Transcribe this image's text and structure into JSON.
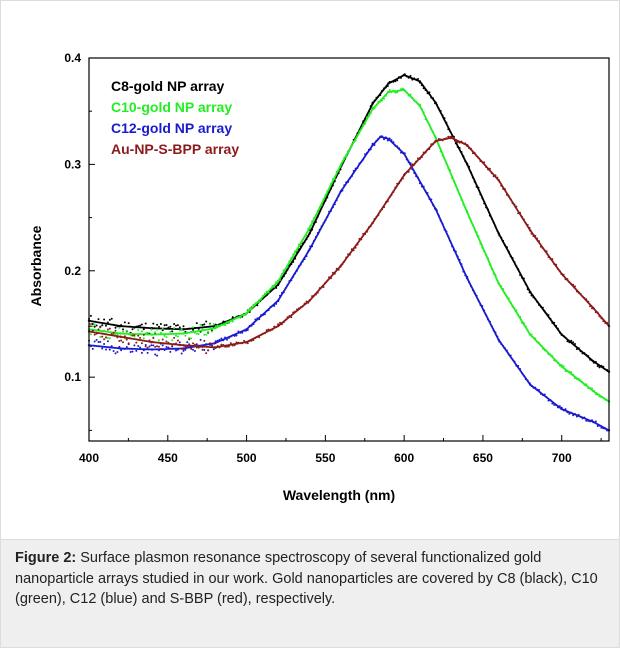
{
  "chart_data": {
    "type": "scatter",
    "title": "",
    "xlabel": "Wavelength (nm)",
    "ylabel": "Absorbance",
    "xlim": [
      400,
      730
    ],
    "ylim": [
      0.04,
      0.4
    ],
    "xticks": [
      400,
      450,
      500,
      550,
      600,
      650,
      700
    ],
    "yticks": [
      0.1,
      0.2,
      0.3,
      0.4
    ],
    "xtick_labels": [
      "400",
      "450",
      "500",
      "550",
      "600",
      "650",
      "700"
    ],
    "ytick_labels": [
      "0.1",
      "0.2",
      "0.3",
      "0.4"
    ],
    "grid": false,
    "legend_position": "top-left",
    "series": [
      {
        "name": "C8-gold NP array",
        "color": "#000000",
        "x": [
          400,
          420,
          440,
          460,
          480,
          500,
          520,
          540,
          560,
          580,
          590,
          600,
          610,
          620,
          640,
          660,
          680,
          700,
          720,
          730
        ],
        "y": [
          0.153,
          0.148,
          0.146,
          0.145,
          0.148,
          0.16,
          0.187,
          0.235,
          0.298,
          0.357,
          0.376,
          0.384,
          0.378,
          0.358,
          0.3,
          0.235,
          0.18,
          0.14,
          0.115,
          0.105
        ]
      },
      {
        "name": "C10-gold NP array",
        "color": "#22ee22",
        "x": [
          400,
          420,
          440,
          460,
          480,
          500,
          520,
          540,
          560,
          580,
          590,
          600,
          610,
          620,
          640,
          660,
          680,
          700,
          720,
          730
        ],
        "y": [
          0.145,
          0.141,
          0.14,
          0.141,
          0.146,
          0.16,
          0.19,
          0.24,
          0.3,
          0.352,
          0.368,
          0.37,
          0.355,
          0.325,
          0.255,
          0.188,
          0.14,
          0.11,
          0.087,
          0.077
        ]
      },
      {
        "name": "C12-gold NP array",
        "color": "#1a1ad0",
        "x": [
          400,
          420,
          440,
          460,
          480,
          500,
          520,
          540,
          560,
          580,
          585,
          590,
          600,
          620,
          640,
          660,
          680,
          700,
          720,
          730
        ],
        "y": [
          0.13,
          0.127,
          0.126,
          0.127,
          0.132,
          0.145,
          0.172,
          0.22,
          0.275,
          0.318,
          0.326,
          0.324,
          0.31,
          0.258,
          0.193,
          0.135,
          0.093,
          0.07,
          0.058,
          0.05
        ]
      },
      {
        "name": "Au-NP-S-BPP array",
        "color": "#8b1a1a",
        "x": [
          400,
          420,
          440,
          460,
          480,
          500,
          520,
          540,
          560,
          580,
          600,
          620,
          630,
          640,
          660,
          680,
          700,
          720,
          730
        ],
        "y": [
          0.143,
          0.138,
          0.133,
          0.13,
          0.128,
          0.133,
          0.148,
          0.172,
          0.205,
          0.245,
          0.29,
          0.322,
          0.325,
          0.318,
          0.285,
          0.238,
          0.197,
          0.165,
          0.148
        ]
      }
    ]
  },
  "caption": {
    "label": "Figure 2:",
    "text": " Surface plasmon resonance spectroscopy of several functionalized gold nanoparticle arrays studied in our work. Gold nanoparticles are covered by C8 (black), C10 (green), C12 (blue) and S-BBP (red), respectively."
  }
}
